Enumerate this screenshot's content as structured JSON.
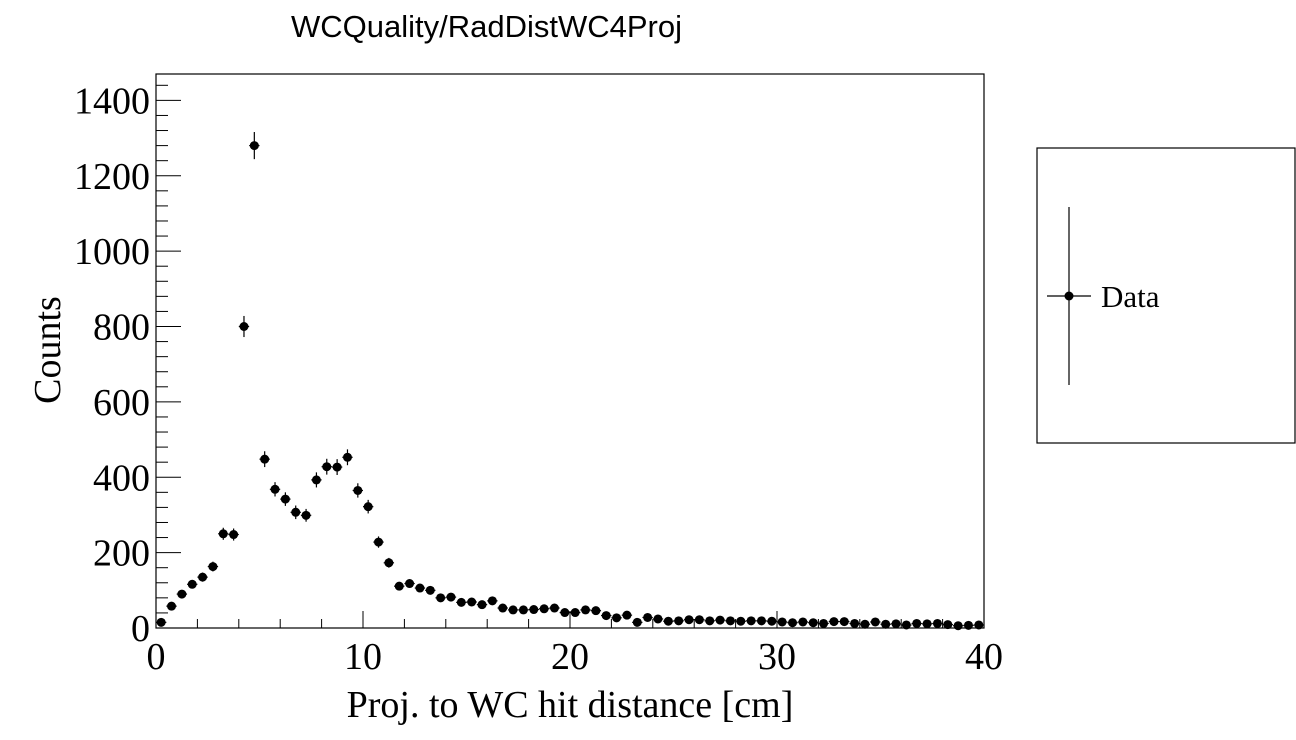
{
  "chart_data": {
    "type": "scatter",
    "title": "WCQuality/RadDistWC4Proj",
    "xlabel": "Proj. to WC hit distance [cm]",
    "ylabel": "Counts",
    "xlim": [
      0,
      40
    ],
    "ylim": [
      0,
      1470
    ],
    "x_ticks": [
      "0",
      "10",
      "20",
      "30",
      "40"
    ],
    "y_ticks": [
      "0",
      "200",
      "400",
      "600",
      "800",
      "1000",
      "1200",
      "1400"
    ],
    "grid": false,
    "legend": {
      "position": "right",
      "entries": [
        "Data"
      ]
    },
    "series": [
      {
        "name": "Data",
        "marker": "circle",
        "color": "#000000",
        "x": [
          0.25,
          0.75,
          1.25,
          1.75,
          2.25,
          2.75,
          3.25,
          3.75,
          4.25,
          4.75,
          5.25,
          5.75,
          6.25,
          6.75,
          7.25,
          7.75,
          8.25,
          8.75,
          9.25,
          9.75,
          10.25,
          10.75,
          11.25,
          11.75,
          12.25,
          12.75,
          13.25,
          13.75,
          14.25,
          14.75,
          15.25,
          15.75,
          16.25,
          16.75,
          17.25,
          17.75,
          18.25,
          18.75,
          19.25,
          19.75,
          20.25,
          20.75,
          21.25,
          21.75,
          22.25,
          22.75,
          23.25,
          23.75,
          24.25,
          24.75,
          25.25,
          25.75,
          26.25,
          26.75,
          27.25,
          27.75,
          28.25,
          28.75,
          29.25,
          29.75,
          30.25,
          30.75,
          31.25,
          31.75,
          32.25,
          32.75,
          33.25,
          33.75,
          34.25,
          34.75,
          35.25,
          35.75,
          36.25,
          36.75,
          37.25,
          37.75,
          38.25,
          38.75,
          39.25,
          39.75
        ],
        "y": [
          15,
          58,
          90,
          116,
          135,
          163,
          250,
          248,
          800,
          1280,
          448,
          368,
          342,
          307,
          299,
          393,
          428,
          427,
          453,
          365,
          322,
          228,
          173,
          111,
          118,
          106,
          100,
          80,
          82,
          68,
          69,
          62,
          72,
          53,
          48,
          48,
          49,
          51,
          53,
          41,
          41,
          48,
          46,
          33,
          27,
          34,
          15,
          28,
          24,
          18,
          19,
          22,
          22,
          19,
          21,
          19,
          18,
          19,
          19,
          18,
          16,
          14,
          16,
          14,
          12,
          17,
          17,
          12,
          10,
          16,
          10,
          11,
          8,
          12,
          11,
          12,
          9,
          6,
          7,
          8
        ],
        "y_err": [
          4,
          8,
          10,
          11,
          12,
          13,
          16,
          16,
          28,
          36,
          21,
          19,
          18,
          18,
          17,
          20,
          21,
          21,
          21,
          19,
          18,
          15,
          13,
          11,
          11,
          10,
          10,
          9,
          9,
          8,
          8,
          8,
          8,
          7,
          7,
          7,
          7,
          7,
          7,
          6,
          6,
          7,
          7,
          6,
          5,
          6,
          4,
          5,
          5,
          4,
          4,
          5,
          5,
          4,
          5,
          4,
          4,
          4,
          4,
          4,
          4,
          4,
          4,
          4,
          3,
          4,
          4,
          3,
          3,
          4,
          3,
          3,
          3,
          3,
          3,
          3,
          3,
          2,
          3,
          3
        ]
      }
    ]
  }
}
